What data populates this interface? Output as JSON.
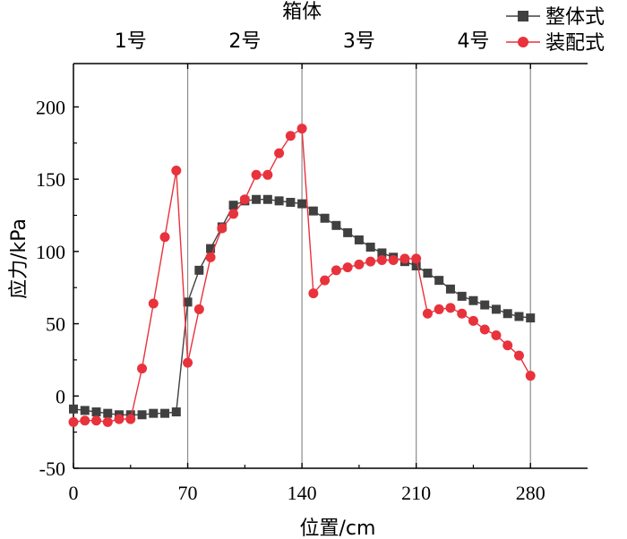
{
  "chart_data": {
    "type": "line",
    "xlabel": "位置/cm",
    "ylabel": "应力/kPa",
    "xlim": [
      0,
      315
    ],
    "ylim": [
      -50,
      230
    ],
    "xticks": [
      0,
      70,
      140,
      210,
      280
    ],
    "yticks": [
      -50,
      0,
      50,
      100,
      150,
      200
    ],
    "grid": false,
    "legend_position": "top-right",
    "top_axis": {
      "title": "箱体",
      "sections": [
        {
          "label": "1号",
          "x": 35
        },
        {
          "label": "2号",
          "x": 105
        },
        {
          "label": "3号",
          "x": 175
        },
        {
          "label": "4号",
          "x": 245
        }
      ]
    },
    "dividers": [
      70,
      140,
      210,
      280
    ],
    "series": [
      {
        "name": "整体式",
        "color": "#404040",
        "marker": "square",
        "x": [
          0,
          7,
          14,
          21,
          28,
          35,
          42,
          49,
          56,
          63,
          70,
          77,
          84,
          91,
          98,
          105,
          112,
          119,
          126,
          133,
          140,
          147,
          154,
          161,
          168,
          175,
          182,
          189,
          196,
          203,
          210,
          217,
          224,
          231,
          238,
          245,
          252,
          259,
          266,
          273,
          280
        ],
        "y": [
          -9,
          -10,
          -11,
          -12,
          -13,
          -13,
          -13,
          -12,
          -12,
          -11,
          65,
          87,
          102,
          117,
          132,
          135,
          136,
          136,
          135,
          134,
          133,
          128,
          123,
          118,
          113,
          108,
          103,
          99,
          96,
          93,
          90,
          85,
          80,
          74,
          69,
          66,
          63,
          60,
          57,
          55,
          54
        ]
      },
      {
        "name": "装配式",
        "color": "#e8323c",
        "marker": "circle",
        "x": [
          0,
          7,
          14,
          21,
          28,
          35,
          42,
          49,
          56,
          63,
          70,
          77,
          84,
          91,
          98,
          105,
          112,
          119,
          126,
          133,
          140,
          147,
          154,
          161,
          168,
          175,
          182,
          189,
          196,
          203,
          210,
          217,
          224,
          231,
          238,
          245,
          252,
          259,
          266,
          273,
          280
        ],
        "y": [
          -18,
          -17,
          -17,
          -18,
          -16,
          -16,
          19,
          64,
          110,
          156,
          23,
          60,
          96,
          116,
          126,
          136,
          153,
          153,
          168,
          180,
          185,
          71,
          80,
          87,
          89,
          91,
          93,
          94,
          94,
          95,
          95,
          57,
          60,
          61,
          57,
          52,
          46,
          42,
          35,
          28,
          14
        ]
      }
    ]
  }
}
